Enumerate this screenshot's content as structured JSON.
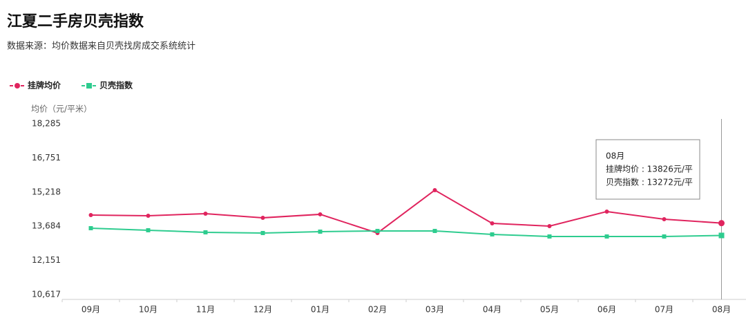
{
  "chart_data": {
    "type": "line",
    "title": "江夏二手房贝壳指数",
    "subtitle": "数据来源：均价数据来自贝壳找房成交系统统计",
    "y_axis_label": "均价（元/平米）",
    "categories": [
      "09月",
      "10月",
      "11月",
      "12月",
      "01月",
      "02月",
      "03月",
      "04月",
      "05月",
      "06月",
      "07月",
      "08月"
    ],
    "series": [
      {
        "name": "挂牌均价",
        "color": "#e0245e",
        "marker": "circle",
        "values": [
          14188,
          14157,
          14250,
          14064,
          14220,
          13381,
          15306,
          13816,
          13692,
          14344,
          14002,
          13826
        ]
      },
      {
        "name": "贝壳指数",
        "color": "#2ecc8f",
        "marker": "square",
        "values": [
          13598,
          13505,
          13412,
          13381,
          13443,
          13474,
          13474,
          13319,
          13226,
          13226,
          13226,
          13272
        ]
      }
    ],
    "ylim": [
      10617,
      18285
    ],
    "yticks": [
      {
        "value": 10617,
        "label": "10,617"
      },
      {
        "value": 12151,
        "label": "12,151"
      },
      {
        "value": 13684,
        "label": "13,684"
      },
      {
        "value": 15218,
        "label": "15,218"
      },
      {
        "value": 16751,
        "label": "16,751"
      },
      {
        "value": 18285,
        "label": "18,285"
      }
    ],
    "grid": false,
    "legend": "top-left",
    "tooltip": {
      "index": 11,
      "title": "08月",
      "lines": [
        "挂牌均价 : 13826元/平",
        "贝壳指数 : 13272元/平"
      ]
    }
  }
}
